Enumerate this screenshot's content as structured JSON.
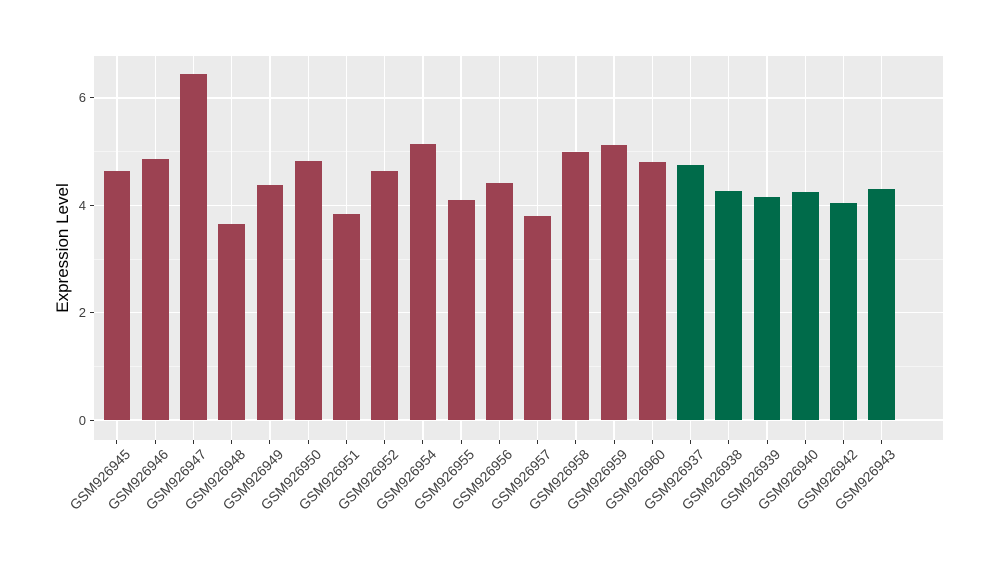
{
  "chart_data": {
    "type": "bar",
    "title": "",
    "xlabel": "",
    "ylabel": "Expression Level",
    "categories": [
      "GSM926945",
      "GSM926946",
      "GSM926947",
      "GSM926948",
      "GSM926949",
      "GSM926950",
      "GSM926951",
      "GSM926952",
      "GSM926954",
      "GSM926955",
      "GSM926956",
      "GSM926957",
      "GSM926958",
      "GSM926959",
      "GSM926960",
      "GSM926937",
      "GSM926938",
      "GSM926939",
      "GSM926940",
      "GSM926942",
      "GSM926943"
    ],
    "values": [
      4.64,
      4.86,
      6.44,
      3.65,
      4.38,
      4.82,
      3.83,
      4.64,
      5.14,
      4.1,
      4.41,
      3.8,
      5.0,
      5.13,
      4.8,
      4.75,
      4.26,
      4.15,
      4.24,
      4.05,
      4.31
    ],
    "bar_groups": [
      "group1",
      "group1",
      "group1",
      "group1",
      "group1",
      "group1",
      "group1",
      "group1",
      "group1",
      "group1",
      "group1",
      "group1",
      "group1",
      "group1",
      "group1",
      "group2",
      "group2",
      "group2",
      "group2",
      "group2",
      "group2"
    ],
    "y_ticks": [
      0,
      2,
      4,
      6
    ],
    "y_minor_ticks": [
      1,
      3,
      5
    ],
    "ylim": [
      -0.37,
      6.78
    ],
    "x_tick_rotation": 45,
    "grid": true,
    "legend_position": "none"
  },
  "colors": {
    "group1": "#9C4252",
    "group2": "#006B4A",
    "panel_bg": "#EBEBEB",
    "grid_major": "#FFFFFF",
    "grid_minor": "#F5F5F5",
    "tick_mark": "#333333",
    "axis_text": "#404040",
    "axis_title": "#000000",
    "background": "#FFFFFF"
  }
}
